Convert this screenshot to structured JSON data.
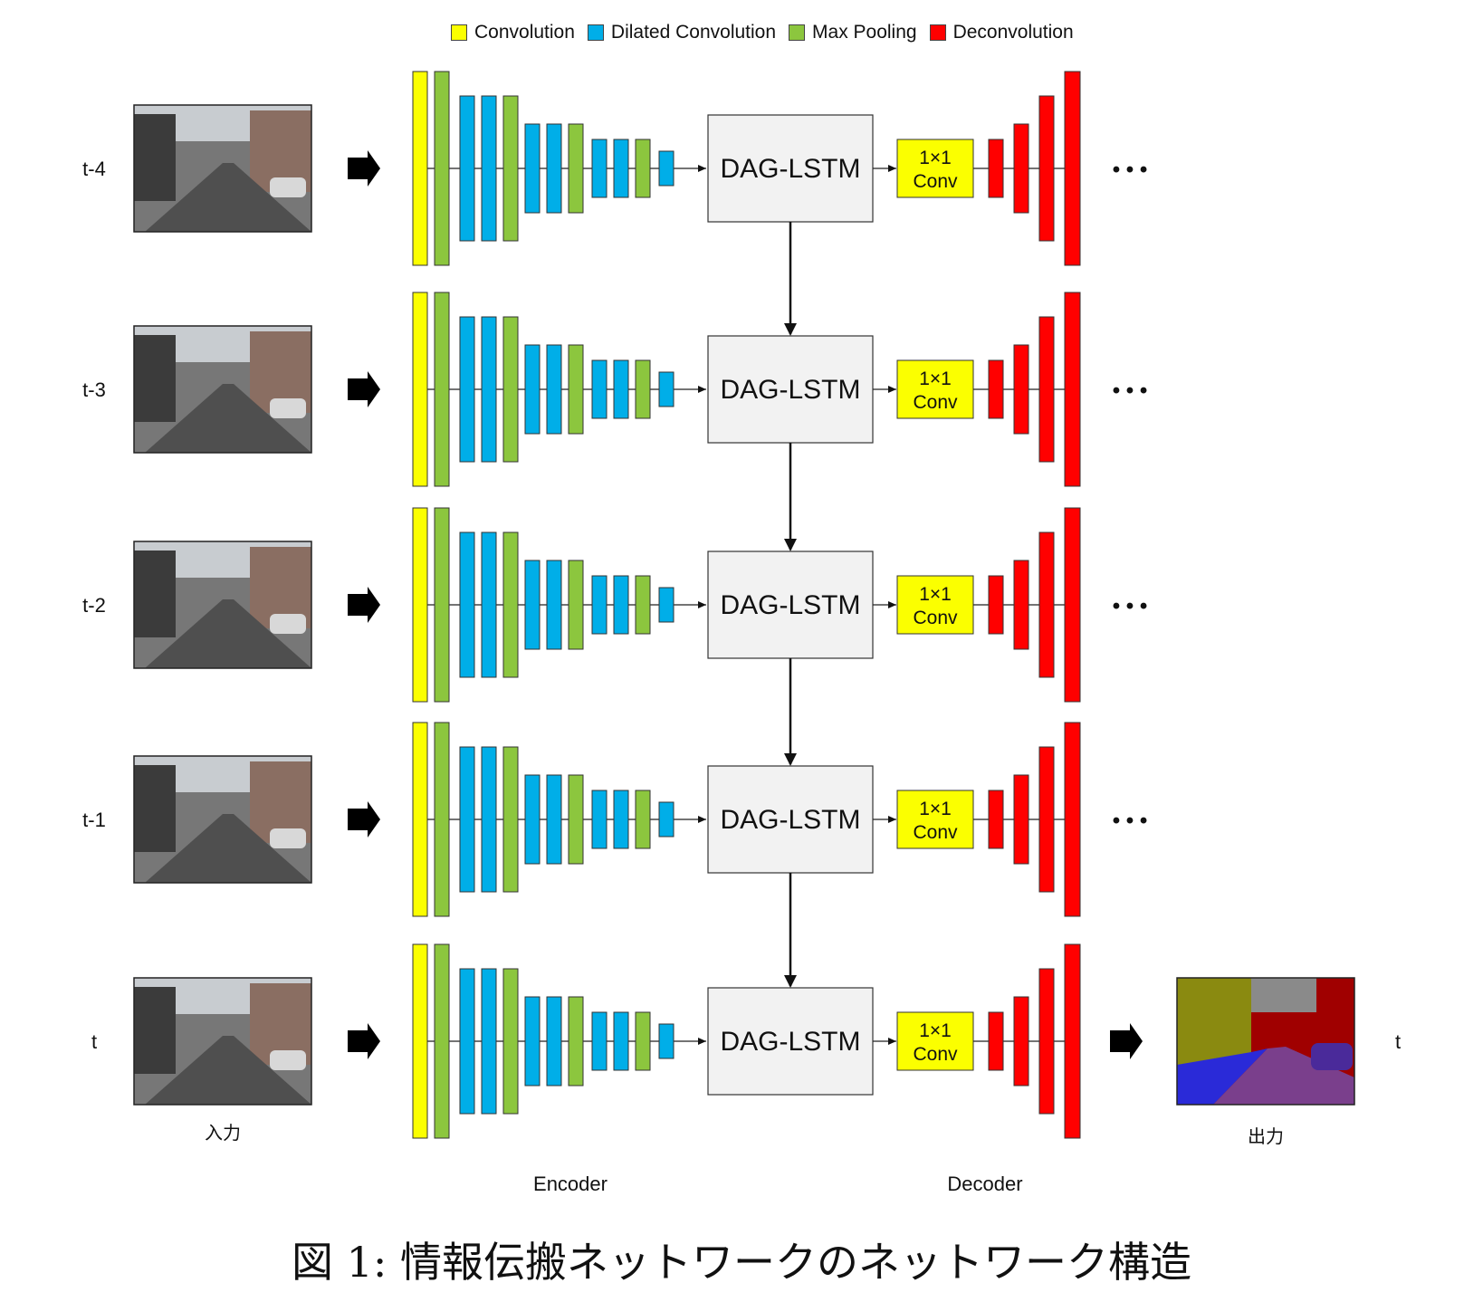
{
  "legend": [
    {
      "label": "Convolution",
      "color": "#fbff00"
    },
    {
      "label": "Dilated Convolution",
      "color": "#00aee8"
    },
    {
      "label": "Max Pooling",
      "color": "#8cc63e"
    },
    {
      "label": "Deconvolution",
      "color": "#ff0000"
    }
  ],
  "frames": [
    {
      "label": "t-4",
      "dots": "• • •"
    },
    {
      "label": "t-3",
      "dots": "• • •"
    },
    {
      "label": "t-2",
      "dots": "• • •"
    },
    {
      "label": "t-1",
      "dots": "• • •"
    },
    {
      "label": "t",
      "dots": ""
    }
  ],
  "block_label": "DAG-LSTM",
  "conv1x1_label": [
    "1×1",
    "Conv"
  ],
  "input_label": "入力",
  "output_label": "出力",
  "output_time_label": "t",
  "encoder_label": "Encoder",
  "decoder_label": "Decoder",
  "caption": "図 1: 情報伝搬ネットワークのネットワーク構造",
  "colors": {
    "conv": "#fbff00",
    "dilated": "#00aee8",
    "pool": "#8cc63e",
    "deconv": "#ff0000",
    "lstm_fill": "#f2f2f2",
    "seg_sky": "#8a8a8a",
    "seg_building": "#a00000",
    "seg_tree": "#8a8a10",
    "seg_road": "#7a3f8c",
    "seg_sidewalk": "#2a2ad8",
    "seg_car": "#4a2a9a"
  }
}
